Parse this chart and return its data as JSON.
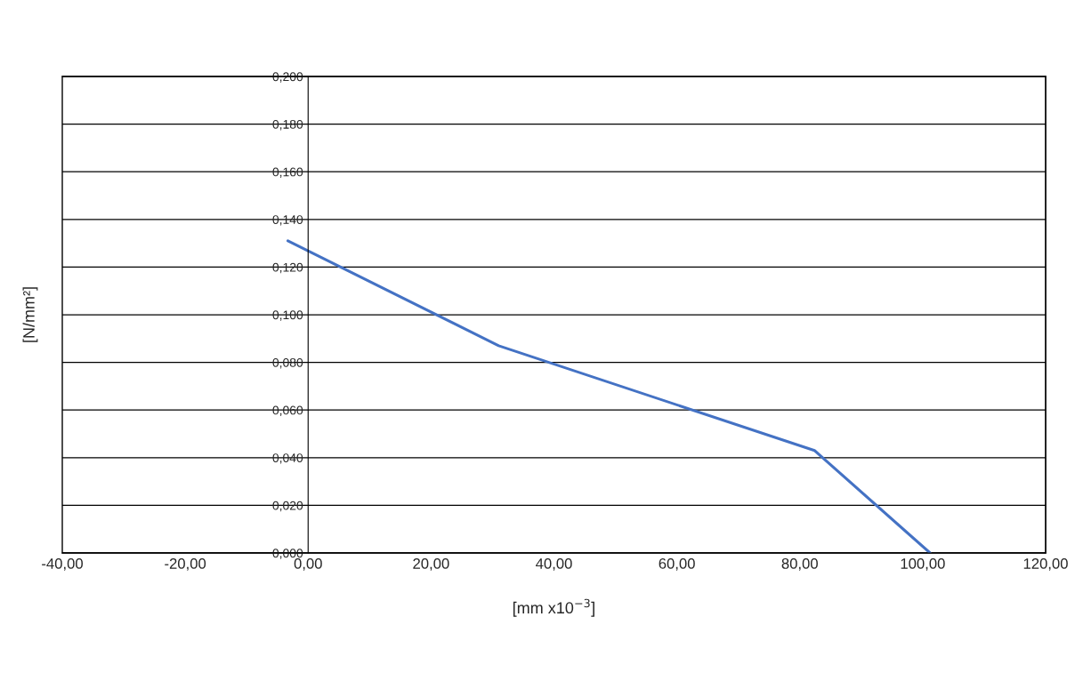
{
  "chart_data": {
    "type": "line",
    "xlabel": "[mm x10$^{−3}$]",
    "ylabel": "[N/mm²]",
    "x": [
      -3.3,
      31.0,
      82.4,
      101.2
    ],
    "series": [
      {
        "color": "#4472c4",
        "values": [
          0.131,
          0.087,
          0.043,
          0.0
        ]
      }
    ],
    "xlim": [
      -40,
      120
    ],
    "ylim": [
      0,
      0.2
    ],
    "xticks": [
      {
        "value": -40,
        "label": "-40,00"
      },
      {
        "value": -20,
        "label": "-20,00"
      },
      {
        "value": 0,
        "label": "0,00"
      },
      {
        "value": 20,
        "label": "20,00"
      },
      {
        "value": 40,
        "label": "40,00"
      },
      {
        "value": 60,
        "label": "60,00"
      },
      {
        "value": 80,
        "label": "80,00"
      },
      {
        "value": 100,
        "label": "100,00"
      },
      {
        "value": 120,
        "label": "120,00"
      }
    ],
    "yticks": [
      {
        "value": 0,
        "label": "0,000"
      },
      {
        "value": 0.02,
        "label": "0,020"
      },
      {
        "value": 0.04,
        "label": "0,040"
      },
      {
        "value": 0.06,
        "label": "0,060"
      },
      {
        "value": 0.08,
        "label": "0,080"
      },
      {
        "value": 0.1,
        "label": "0,100"
      },
      {
        "value": 0.12,
        "label": "0,120"
      },
      {
        "value": 0.14,
        "label": "0,140"
      },
      {
        "value": 0.16,
        "label": "0,160"
      },
      {
        "value": 0.18,
        "label": "0,180"
      },
      {
        "value": 0.2,
        "label": "0,200"
      }
    ],
    "grid": "y",
    "legend": false,
    "marker": "none",
    "line_style": "solid"
  }
}
